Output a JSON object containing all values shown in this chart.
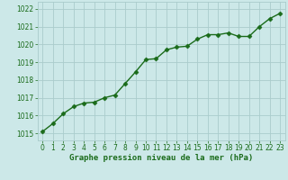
{
  "x": [
    0,
    1,
    2,
    3,
    4,
    5,
    6,
    7,
    8,
    9,
    10,
    11,
    12,
    13,
    14,
    15,
    16,
    17,
    18,
    19,
    20,
    21,
    22,
    23
  ],
  "y": [
    1015.1,
    1015.55,
    1016.1,
    1016.5,
    1016.7,
    1016.75,
    1017.0,
    1017.15,
    1017.8,
    1018.45,
    1019.15,
    1019.2,
    1019.7,
    1019.85,
    1019.9,
    1020.3,
    1020.55,
    1020.55,
    1020.65,
    1020.45,
    1020.45,
    1021.0,
    1021.45,
    1021.75
  ],
  "line_color": "#1a6b1a",
  "marker": "D",
  "marker_size": 2.5,
  "linewidth": 1.0,
  "bg_color": "#cce8e8",
  "grid_color": "#aacccc",
  "xlabel": "Graphe pression niveau de la mer (hPa)",
  "xlabel_color": "#1a6b1a",
  "xlabel_fontsize": 6.5,
  "tick_color": "#1a6b1a",
  "tick_fontsize": 5.5,
  "ylim": [
    1014.6,
    1022.4
  ],
  "xlim": [
    -0.5,
    23.5
  ],
  "yticks": [
    1015,
    1016,
    1017,
    1018,
    1019,
    1020,
    1021,
    1022
  ],
  "xtick_labels": [
    "0",
    "1",
    "2",
    "3",
    "4",
    "5",
    "6",
    "7",
    "8",
    "9",
    "10",
    "11",
    "12",
    "13",
    "14",
    "15",
    "16",
    "17",
    "18",
    "19",
    "20",
    "21",
    "22",
    "23"
  ]
}
